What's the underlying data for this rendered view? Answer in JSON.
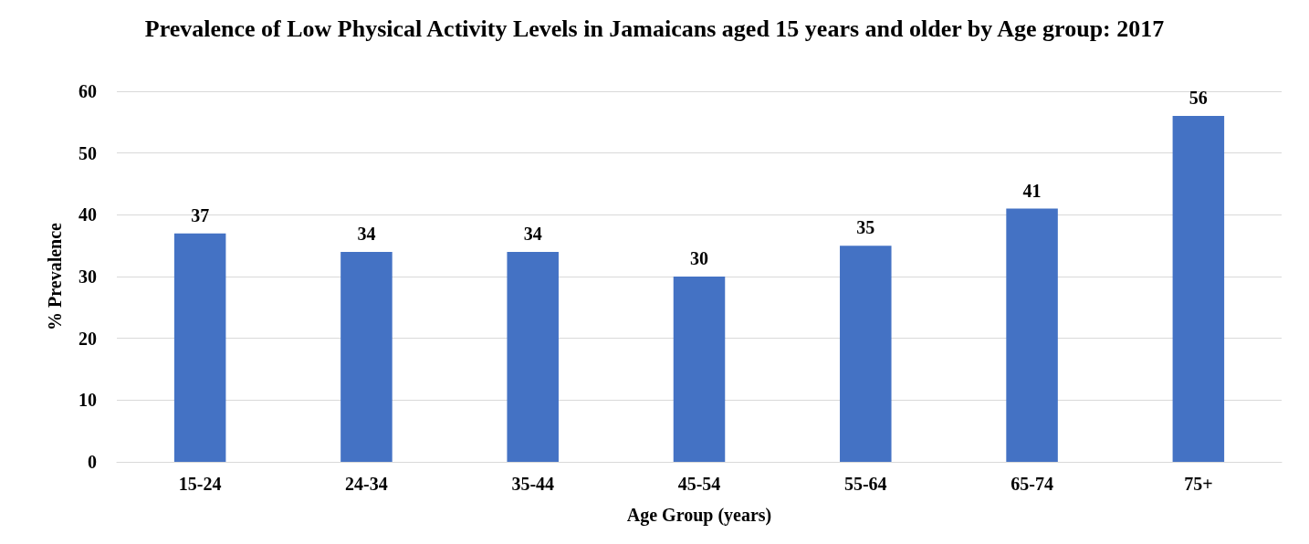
{
  "chart_data": {
    "type": "bar",
    "title": "Prevalence of Low Physical Activity Levels in Jamaicans aged 15 years and older by Age group: 2017",
    "xlabel": "Age Group (years)",
    "ylabel": "% Prevalence",
    "categories": [
      "15-24",
      "24-34",
      "35-44",
      "45-54",
      "55-64",
      "65-74",
      "75+"
    ],
    "values": [
      37,
      34,
      34,
      30,
      35,
      41,
      56
    ],
    "color": "#4472c4",
    "ylim": [
      0,
      60
    ],
    "yticks": [
      0,
      10,
      20,
      30,
      40,
      50,
      60
    ],
    "grid": "y",
    "data_labels": true
  }
}
